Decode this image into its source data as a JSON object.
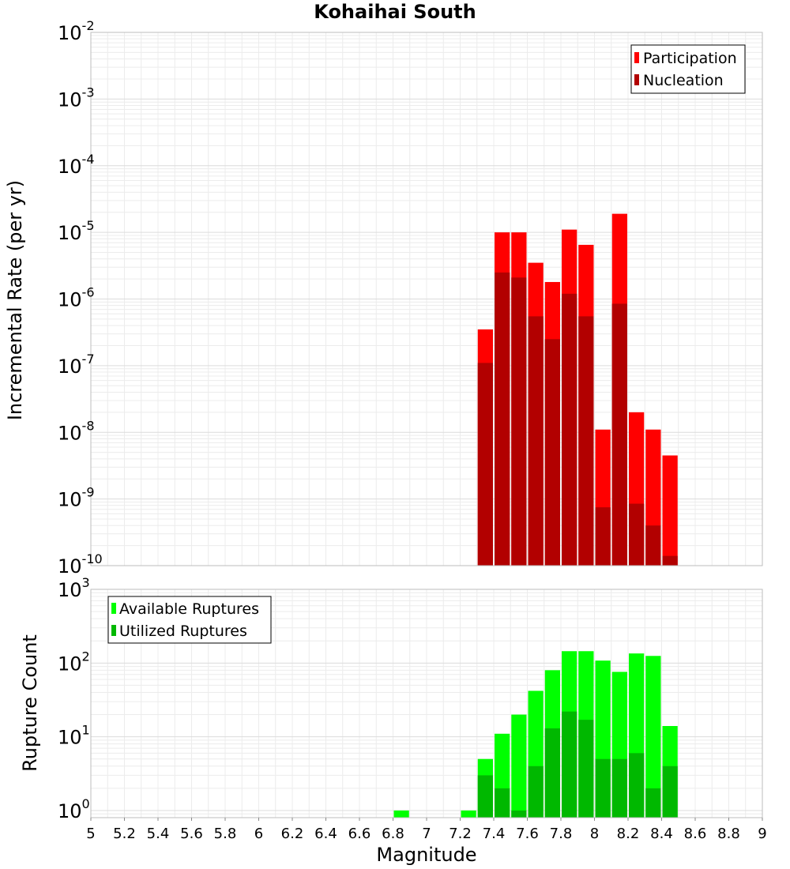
{
  "chart_data": [
    {
      "type": "bar",
      "title": "Kohaihai South",
      "xlabel": "",
      "ylabel": "Incremental Rate (per yr)",
      "yscale": "log",
      "ylim": [
        1e-10,
        0.01
      ],
      "xlim": [
        5,
        9
      ],
      "grid": true,
      "legend_position": "top-right",
      "series": [
        {
          "name": "Participation",
          "color": "#ff0000",
          "x": [
            7.35,
            7.45,
            7.55,
            7.65,
            7.75,
            7.85,
            7.95,
            8.05,
            8.15,
            8.25,
            8.35,
            8.45
          ],
          "values": [
            3.5e-07,
            1e-05,
            1e-05,
            3.5e-06,
            1.8e-06,
            1.1e-05,
            6.5e-06,
            1.1e-08,
            1.9e-05,
            2e-08,
            1.1e-08,
            4.5e-09
          ]
        },
        {
          "name": "Nucleation",
          "color": "#b20000",
          "x": [
            7.35,
            7.45,
            7.55,
            7.65,
            7.75,
            7.85,
            7.95,
            8.05,
            8.15,
            8.25,
            8.35,
            8.45
          ],
          "values": [
            1.1e-07,
            2.5e-06,
            2.1e-06,
            5.5e-07,
            2.5e-07,
            1.2e-06,
            5.5e-07,
            7.5e-10,
            8.5e-07,
            8.5e-10,
            4e-10,
            1.4e-10
          ]
        }
      ]
    },
    {
      "type": "bar",
      "title": "",
      "xlabel": "Magnitude",
      "ylabel": "Rupture Count",
      "yscale": "log",
      "ylim": [
        0.8,
        1000
      ],
      "xlim": [
        5,
        9
      ],
      "grid": true,
      "legend_position": "top-left",
      "series": [
        {
          "name": "Available Ruptures",
          "color": "#00ff00",
          "x": [
            6.85,
            7.25,
            7.35,
            7.45,
            7.55,
            7.65,
            7.75,
            7.85,
            7.95,
            8.05,
            8.15,
            8.25,
            8.35,
            8.45
          ],
          "values": [
            1,
            1,
            5,
            11,
            20,
            42,
            80,
            145,
            145,
            108,
            76,
            135,
            125,
            14
          ]
        },
        {
          "name": "Utilized Ruptures",
          "color": "#00b800",
          "x": [
            7.35,
            7.45,
            7.55,
            7.65,
            7.75,
            7.85,
            7.95,
            8.05,
            8.15,
            8.25,
            8.35,
            8.45
          ],
          "values": [
            3,
            2,
            1,
            4,
            13,
            22,
            17,
            5,
            5,
            6,
            2,
            4
          ]
        }
      ]
    }
  ],
  "x_ticks": [
    "5",
    "5.2",
    "5.4",
    "5.6",
    "5.8",
    "6",
    "6.2",
    "6.4",
    "6.6",
    "6.8",
    "7",
    "7.2",
    "7.4",
    "7.6",
    "7.8",
    "8",
    "8.2",
    "8.4",
    "8.6",
    "8.8",
    "9"
  ],
  "x_tick_values": [
    5,
    5.2,
    5.4,
    5.6,
    5.8,
    6,
    6.2,
    6.4,
    6.6,
    6.8,
    7,
    7.2,
    7.4,
    7.6,
    7.8,
    8,
    8.2,
    8.4,
    8.6,
    8.8,
    9
  ],
  "top_y_ticks": [
    {
      "base": "10",
      "exp": "-2",
      "value": 0.01
    },
    {
      "base": "10",
      "exp": "-3",
      "value": 0.001
    },
    {
      "base": "10",
      "exp": "-4",
      "value": 0.0001
    },
    {
      "base": "10",
      "exp": "-5",
      "value": 1e-05
    },
    {
      "base": "10",
      "exp": "-6",
      "value": 1e-06
    },
    {
      "base": "10",
      "exp": "-7",
      "value": 1e-07
    },
    {
      "base": "10",
      "exp": "-8",
      "value": 1e-08
    },
    {
      "base": "10",
      "exp": "-9",
      "value": 1e-09
    },
    {
      "base": "10",
      "exp": "-10",
      "value": 1e-10
    }
  ],
  "bottom_y_ticks": [
    {
      "base": "10",
      "exp": "3",
      "value": 1000
    },
    {
      "base": "10",
      "exp": "2",
      "value": 100
    },
    {
      "base": "10",
      "exp": "1",
      "value": 10
    },
    {
      "base": "10",
      "exp": "0",
      "value": 1
    }
  ]
}
